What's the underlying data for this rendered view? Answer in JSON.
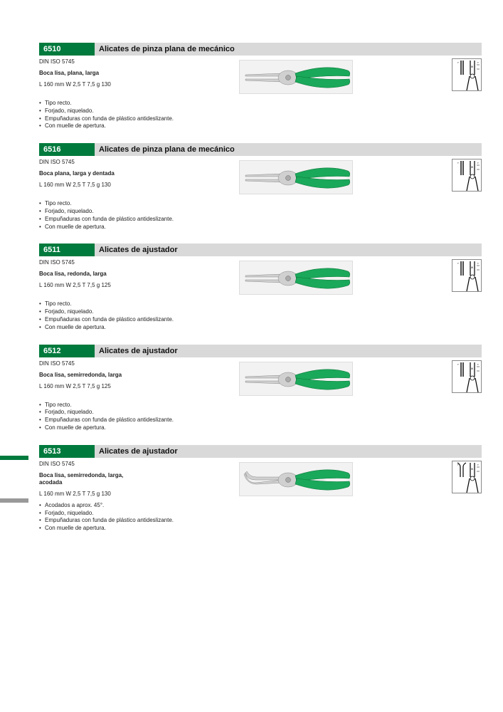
{
  "brand_green": "#007a3d",
  "handle_green": "#1aa85a",
  "metal_gray": "#d0d0d0",
  "bar_gray": "#d9d9d9",
  "products": [
    {
      "code": "6510",
      "title": "Alicates de pinza plana de mecánico",
      "standard": "DIN ISO 5745",
      "shape_desc": "Boca lisa, plana, larga",
      "spec": "L 160 mm  W 2,5  T 7,5  g 130",
      "features": [
        "Tipo recto.",
        "Forjado, niquelado.",
        "Empuñaduras con funda de plástico antideslizante.",
        "Con muelle de apertura."
      ],
      "tip": "straight-flat"
    },
    {
      "code": "6516",
      "title": "Alicates de pinza plana de mecánico",
      "standard": "DIN ISO 5745",
      "shape_desc": "Boca plana, larga y dentada",
      "spec": "L 160 mm  W 2,5  T 7,5  g 130",
      "features": [
        "Tipo recto.",
        "Forjado, niquelado.",
        "Empuñaduras con funda de plástico antideslizante.",
        "Con muelle de apertura."
      ],
      "tip": "straight-flat-serrated"
    },
    {
      "code": "6511",
      "title": "Alicates de ajustador",
      "standard": "DIN ISO 5745",
      "shape_desc": "Boca lisa, redonda, larga",
      "spec": "L 160 mm  W 2,5  T 7,5  g 125",
      "features": [
        "Tipo recto.",
        "Forjado, niquelado.",
        "Empuñaduras con funda de plástico antideslizante.",
        "Con muelle de apertura."
      ],
      "tip": "straight-round"
    },
    {
      "code": "6512",
      "title": "Alicates de ajustador",
      "standard": "DIN ISO 5745",
      "shape_desc": "Boca lisa, semirredonda, larga",
      "spec": "L 160 mm  W 2,5  T 7,5  g 125",
      "features": [
        "Tipo recto.",
        "Forjado, niquelado.",
        "Empuñaduras con funda de plástico antideslizante.",
        "Con muelle de apertura."
      ],
      "tip": "straight-halfround"
    },
    {
      "code": "6513",
      "title": "Alicates de ajustador",
      "standard": "DIN ISO 5745",
      "shape_desc": "Boca lisa, semirredonda, larga, acodada",
      "spec": "L 160 mm  W 2,5  T 7,5  g 130",
      "features": [
        "Acodados a aprox. 45°.",
        "Forjado, niquelado.",
        "Empuñaduras con funda de plástico antideslizante.",
        "Con muelle de apertura."
      ],
      "tip": "bent"
    }
  ]
}
